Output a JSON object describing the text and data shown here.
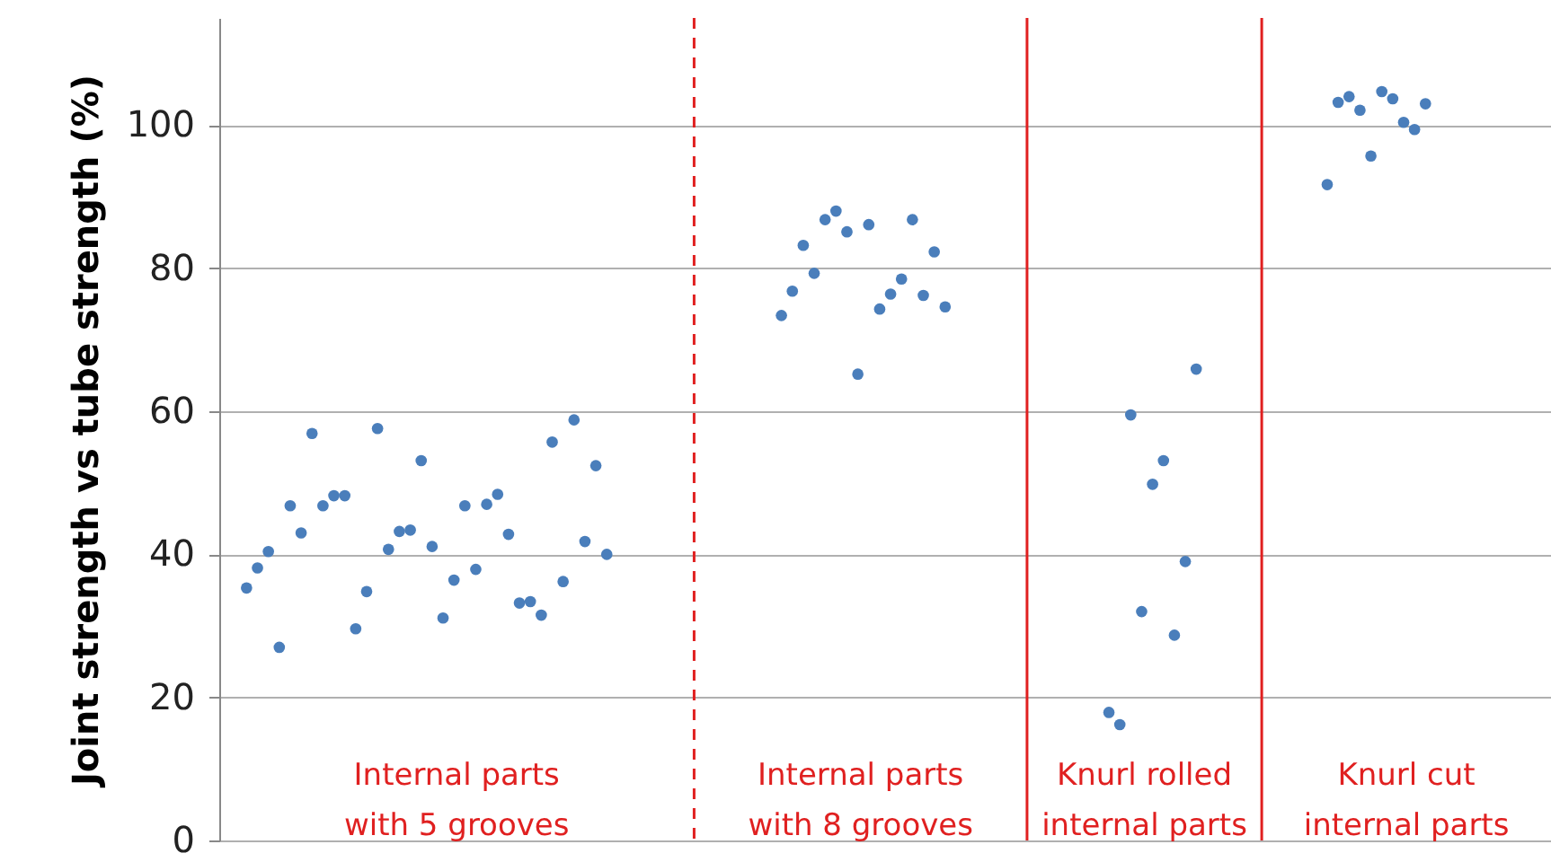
{
  "chart_data": {
    "type": "scatter",
    "ylabel": "Joint strength vs tube strength (%)",
    "categories": [
      null,
      null,
      null,
      null,
      null,
      null,
      null,
      null,
      null,
      null,
      null,
      null,
      null,
      null,
      null,
      null,
      null,
      null,
      null,
      null,
      null,
      null,
      null,
      null,
      null,
      null,
      null,
      null,
      null,
      null,
      null,
      null,
      null,
      null,
      null,
      null,
      null,
      null,
      null,
      null,
      null,
      null,
      null,
      null,
      null,
      null,
      null,
      null,
      null,
      null,
      null,
      null,
      null,
      null,
      null,
      null,
      null,
      null,
      null,
      null,
      null,
      null,
      null,
      null,
      null,
      null,
      null,
      null,
      null,
      null,
      null,
      null,
      null,
      null,
      null,
      null,
      null,
      null,
      null,
      null,
      null,
      null,
      null,
      null,
      null,
      null,
      null,
      null,
      null,
      null,
      null,
      null,
      null,
      null,
      null,
      null,
      null,
      null,
      null,
      null,
      null,
      null,
      null,
      null,
      null,
      null,
      null,
      null,
      null,
      null,
      null,
      null,
      null,
      null,
      null,
      null,
      null,
      null,
      null,
      null,
      null,
      null
    ],
    "series": [
      {
        "color": "#4a7ebb",
        "values": [
          null,
          null,
          35.3,
          38.1,
          40.4,
          27.0,
          46.8,
          43.0,
          56.9,
          46.8,
          48.2,
          48.2,
          29.6,
          34.8,
          57.6,
          40.7,
          43.2,
          43.4,
          53.1,
          41.1,
          31.1,
          36.4,
          46.8,
          37.9,
          47.0,
          48.4,
          42.8,
          33.2,
          33.4,
          31.5,
          55.7,
          36.2,
          58.8,
          41.8,
          52.4,
          40.0,
          null,
          null,
          null,
          null,
          null,
          null,
          null,
          null,
          null,
          null,
          null,
          null,
          null,
          null,
          null,
          73.4,
          76.8,
          83.2,
          79.3,
          86.8,
          88.0,
          85.1,
          65.2,
          86.1,
          74.3,
          76.4,
          78.5,
          86.8,
          76.2,
          82.3,
          74.6,
          null,
          null,
          null,
          null,
          null,
          null,
          null,
          null,
          null,
          null,
          null,
          null,
          null,
          null,
          17.9,
          16.2,
          59.5,
          32.0,
          49.8,
          53.1,
          28.7,
          39.0,
          65.9,
          null,
          null,
          null,
          null,
          null,
          null,
          null,
          null,
          null,
          null,
          null,
          91.7,
          103.2,
          104.0,
          102.1,
          95.7,
          104.7,
          103.7,
          100.4,
          99.4,
          103.0,
          null,
          null,
          null,
          null,
          null,
          null,
          null,
          null,
          null,
          null,
          null
        ]
      }
    ],
    "ylim": [
      0,
      115
    ],
    "yticks": [
      0,
      20,
      40,
      60,
      80,
      100
    ],
    "grid": "y",
    "tick_labels": "y",
    "marker": "circle",
    "annotations": [
      "Internal parts\nwith 5 grooves",
      "Internal parts\nwith 8 grooves",
      "Knurl rolled\ninternal parts",
      "Knurl cut\ninternal parts"
    ]
  }
}
